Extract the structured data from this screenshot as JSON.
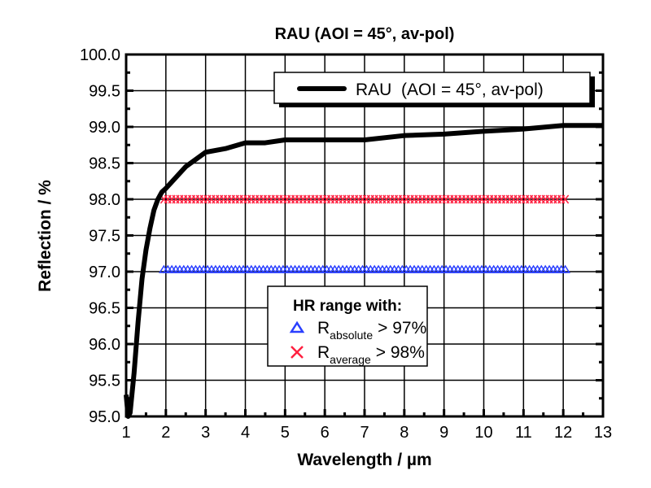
{
  "chart_data": {
    "type": "line",
    "title": "RAU (AOI = 45°, av-pol)",
    "xlabel": "Wavelength / µm",
    "ylabel": "Reflection / %",
    "xlim": [
      1,
      13
    ],
    "ylim": [
      95.0,
      100.0
    ],
    "grid": true,
    "xticks": [
      "1",
      "2",
      "3",
      "4",
      "5",
      "6",
      "7",
      "8",
      "9",
      "10",
      "11",
      "12",
      "13"
    ],
    "yticks": [
      "95.0",
      "95.5",
      "96.0",
      "96.5",
      "97.0",
      "97.5",
      "98.0",
      "98.5",
      "99.0",
      "99.5",
      "100.0"
    ],
    "series": [
      {
        "name": "RAU  (AOI = 45°, av-pol)",
        "color": "#000000",
        "x": [
          1.0,
          1.05,
          1.1,
          1.2,
          1.3,
          1.4,
          1.5,
          1.6,
          1.7,
          1.8,
          1.9,
          2.0,
          2.5,
          3.0,
          3.5,
          4.0,
          4.5,
          5.0,
          6.0,
          7.0,
          8.0,
          9.0,
          10.0,
          11.0,
          12.0,
          13.0
        ],
        "y": [
          95.3,
          95.0,
          95.05,
          95.6,
          96.3,
          96.9,
          97.3,
          97.6,
          97.85,
          98.0,
          98.1,
          98.15,
          98.45,
          98.65,
          98.7,
          98.78,
          98.78,
          98.82,
          98.82,
          98.82,
          98.88,
          98.9,
          98.94,
          98.97,
          99.02,
          99.02
        ]
      },
      {
        "name": "R_absolute > 97%",
        "marker": "triangle",
        "color": "#2a3fff",
        "x_range": [
          1.95,
          12.1
        ],
        "y": 97.0
      },
      {
        "name": "R_average > 98%",
        "marker": "x",
        "color": "#ff2040",
        "x_range": [
          1.95,
          12.1
        ],
        "y": 98.0
      }
    ],
    "legend_main": {
      "label": "RAU  (AOI = 45°, av-pol)",
      "placement": "top-right"
    },
    "legend_hr": {
      "title": "HR range with:",
      "items": [
        {
          "R": "R",
          "sub": "absolute",
          "cond": "> 97%"
        },
        {
          "R": "R",
          "sub": "average",
          "cond": "> 98%"
        }
      ],
      "placement": "bottom-center"
    }
  }
}
